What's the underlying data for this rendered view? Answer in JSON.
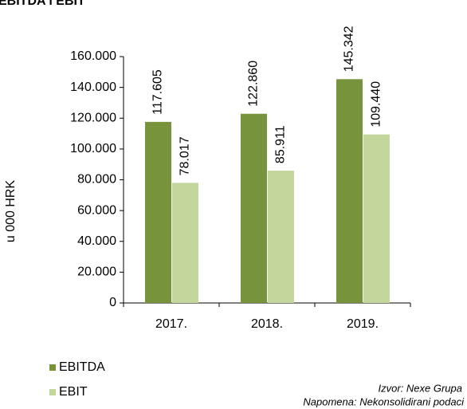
{
  "chart_data": {
    "type": "bar",
    "title": "EBITDA i EBIT",
    "y_label": "u 000 HRK",
    "categories": [
      "2017.",
      "2018.",
      "2019."
    ],
    "series": [
      {
        "name": "EBITDA",
        "color": "#77933c",
        "values": [
          117605,
          122860,
          145342
        ],
        "value_labels": [
          "117.605",
          "122.860",
          "145.342"
        ]
      },
      {
        "name": "EBIT",
        "color": "#c3d69b",
        "values": [
          78017,
          85911,
          109440
        ],
        "value_labels": [
          "78.017",
          "85.911",
          "109.440"
        ]
      }
    ],
    "ylim": [
      0,
      160000
    ],
    "yticks": [
      0,
      {
        "value": 20000,
        "label": "20.000"
      },
      {
        "value": 40000,
        "label": "40.000"
      },
      {
        "value": 60000,
        "label": "60.000"
      },
      {
        "value": 80000,
        "label": "80.000"
      },
      {
        "value": 100000,
        "label": "100.000"
      },
      {
        "value": 120000,
        "label": "120.000"
      },
      {
        "value": 140000,
        "label": "140.000"
      },
      {
        "value": 160000,
        "label": "160.000"
      }
    ],
    "source": "Izvor: Nexe Grupa",
    "note": "Napomena:  Nekonsolidirani podaci"
  }
}
